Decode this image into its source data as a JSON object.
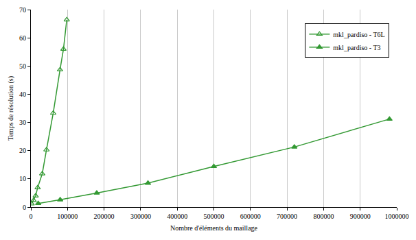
{
  "chart_data": {
    "type": "line",
    "x_label": "Nombre d'éléments du maillage",
    "y_label": "Temps de résolution (s)",
    "xlim": [
      0,
      1000000
    ],
    "xticks": [
      0,
      100000,
      200000,
      300000,
      400000,
      500000,
      600000,
      700000,
      800000,
      900000,
      1000000
    ],
    "ylim": [
      0,
      70
    ],
    "yticks": [
      0,
      10,
      20,
      30,
      40,
      50,
      60,
      70
    ],
    "grid": true,
    "legend": "upper right",
    "series": [
      {
        "name": "mkl_pardiso - T6L",
        "color": "#339933",
        "marker": "triangle-up-open",
        "line_style": "solid",
        "x": [
          2000,
          7400,
          13000,
          18500,
          31000,
          42600,
          61000,
          79600,
          89000,
          98000
        ],
        "values": [
          1.2,
          2.4,
          4.0,
          6.9,
          11.8,
          20.3,
          33.3,
          48.7,
          56.0,
          66.4
        ]
      },
      {
        "name": "mkl_pardiso - T3",
        "color": "#339933",
        "marker": "triangle-up",
        "line_style": "solid",
        "x": [
          20000,
          80000,
          180000,
          320000,
          500000,
          720000,
          980000
        ],
        "values": [
          1.3,
          2.6,
          5.0,
          8.5,
          14.4,
          21.3,
          31.2
        ]
      }
    ]
  }
}
